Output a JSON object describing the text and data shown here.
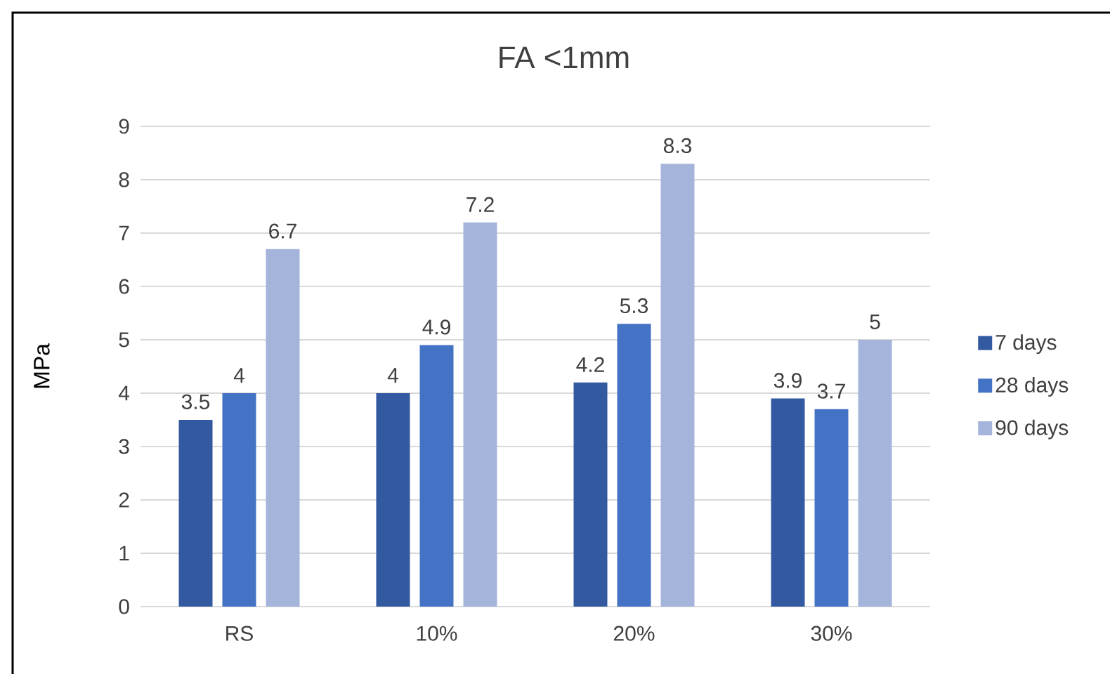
{
  "chart_data": {
    "type": "bar",
    "title": "FA <1mm",
    "ylabel": "MPa",
    "categories": [
      "RS",
      "10%",
      "20%",
      "30%"
    ],
    "series": [
      {
        "name": "7 days",
        "color": "#335aa1",
        "values": [
          3.5,
          4,
          4.2,
          3.9
        ]
      },
      {
        "name": "28 days",
        "color": "#4472c4",
        "values": [
          4,
          4.9,
          5.3,
          3.7
        ]
      },
      {
        "name": "90 days",
        "color": "#a5b4db",
        "values": [
          6.7,
          7.2,
          8.3,
          5
        ]
      }
    ],
    "ylim": [
      0,
      9
    ],
    "yticks": [
      0,
      1,
      2,
      3,
      4,
      5,
      6,
      7,
      8,
      9
    ],
    "grid": "y",
    "legend": "right",
    "data_labels": true
  }
}
